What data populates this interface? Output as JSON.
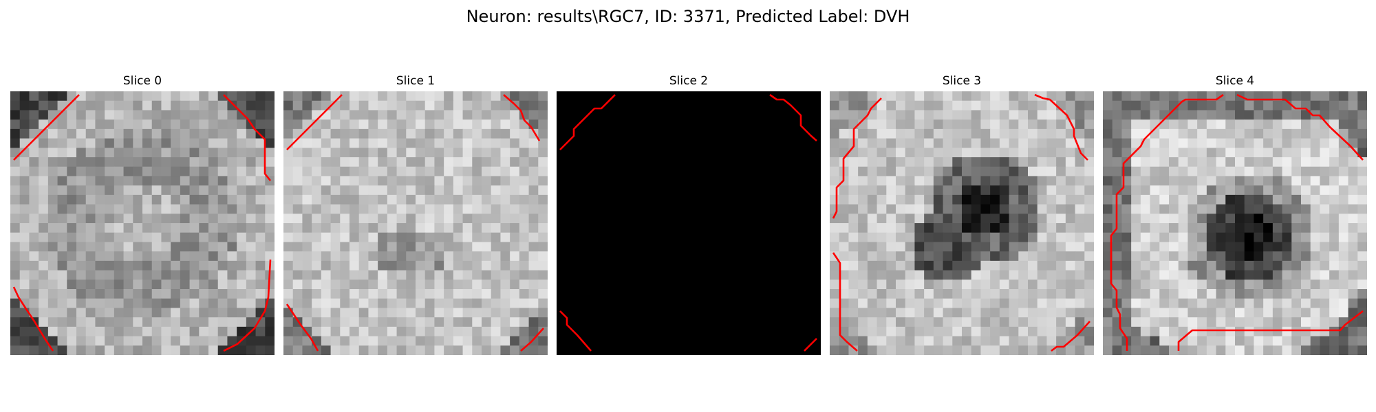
{
  "figure": {
    "title": "Neuron: results\\RGC7, ID: 3371, Predicted Label: DVH"
  },
  "overlay_color": "#ff0000",
  "slices": [
    {
      "label": "Slice 0",
      "pattern": "ring"
    },
    {
      "label": "Slice 1",
      "pattern": "ring-faint"
    },
    {
      "label": "Slice 2",
      "pattern": "black"
    },
    {
      "label": "Slice 3",
      "pattern": "blob"
    },
    {
      "label": "Slice 4",
      "pattern": "blob-strong"
    }
  ]
}
